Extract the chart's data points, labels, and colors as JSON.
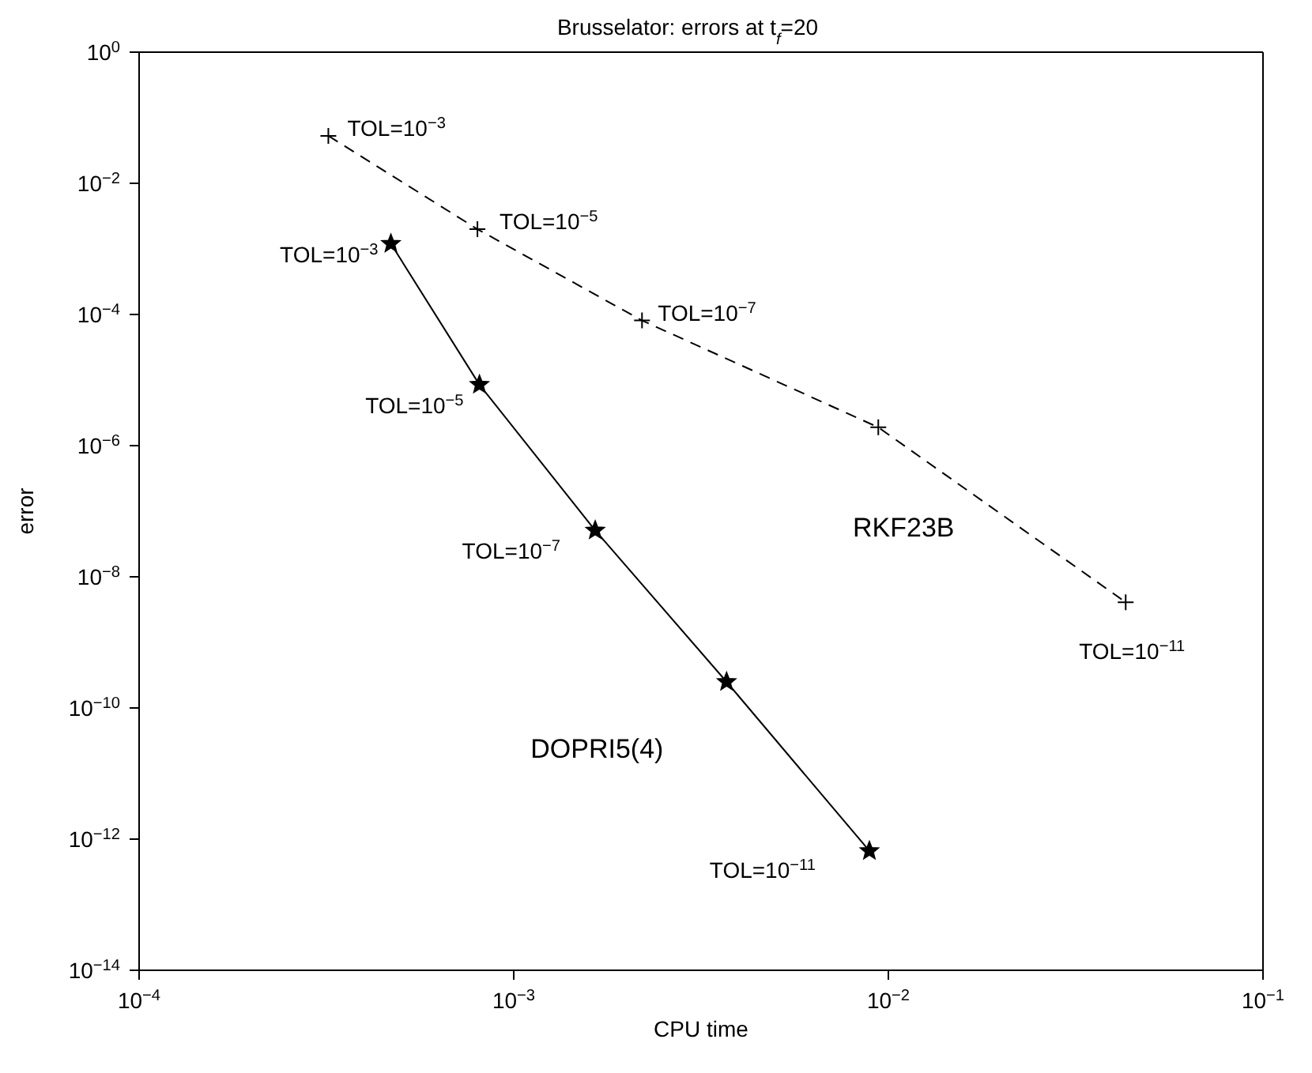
{
  "chart_data": {
    "type": "line",
    "title": "Brusselator: errors at t$_{f}$=20",
    "xlabel": "CPU time",
    "ylabel": "error",
    "log": "xy",
    "grid": false,
    "legend": false,
    "xlim": [
      0.0001,
      0.1
    ],
    "xticks": [
      {
        "value": 0.0001,
        "label": "10$^{−4}$"
      },
      {
        "value": 0.001,
        "label": "10$^{−3}$"
      },
      {
        "value": 0.01,
        "label": "10$^{−2}$"
      },
      {
        "value": 0.1,
        "label": "10$^{−1}$"
      }
    ],
    "ylim": [
      1e-14,
      1
    ],
    "yticks": [
      {
        "value": 1e-14,
        "label": "10$^{−14}$"
      },
      {
        "value": 1e-12,
        "label": "10$^{−12}$"
      },
      {
        "value": 1e-10,
        "label": "10$^{−10}$"
      },
      {
        "value": 1e-08,
        "label": "10$^{−8}$"
      },
      {
        "value": 1e-06,
        "label": "10$^{−6}$"
      },
      {
        "value": 0.0001,
        "label": "10$^{−4}$"
      },
      {
        "value": 0.01,
        "label": "10$^{−2}$"
      },
      {
        "value": 1,
        "label": "10$^{0}$"
      }
    ],
    "series": [
      {
        "name": "RKF23B",
        "color": "#000000",
        "marker": "cross",
        "line_style": "dashed",
        "x": [
          0.00032,
          0.0008,
          0.0022,
          0.0094,
          0.043
        ],
        "values": [
          0.053,
          0.002,
          8.1e-05,
          1.9e-06,
          4.1e-09
        ]
      },
      {
        "name": "DOPRI5(4)",
        "color": "#000000",
        "marker": "star",
        "line_style": "solid",
        "x": [
          0.00047,
          0.00081,
          0.00165,
          0.0037,
          0.0089
        ],
        "values": [
          0.0012,
          8.5e-06,
          5.1e-08,
          2.5e-10,
          6.6e-13
        ]
      }
    ],
    "annotations": [
      {
        "text": "TOL=10$^{−3}$",
        "x": 0.00032,
        "y": 0.053
      },
      {
        "text": "TOL=10$^{−5}$",
        "x": 0.0008,
        "y": 0.002
      },
      {
        "text": "TOL=10$^{−7}$",
        "x": 0.0022,
        "y": 8.1e-05
      },
      {
        "text": "TOL=10$^{−11}$",
        "x": 0.043,
        "y": 4.1e-09
      },
      {
        "text": "TOL=10$^{−3}$",
        "x": 0.00047,
        "y": 0.0012
      },
      {
        "text": "TOL=10$^{−5}$",
        "x": 0.00081,
        "y": 8.5e-06
      },
      {
        "text": "TOL=10$^{−7}$",
        "x": 0.00165,
        "y": 5.1e-08
      },
      {
        "text": "TOL=10$^{−11}$",
        "x": 0.0089,
        "y": 6.6e-13
      }
    ]
  }
}
